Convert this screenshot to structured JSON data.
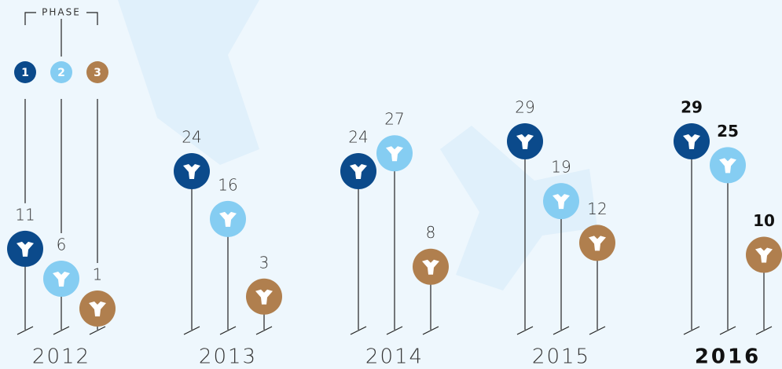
{
  "chart_data": {
    "type": "pin",
    "legend_title": "PHASE",
    "categories": [
      "2012",
      "2013",
      "2014",
      "2015",
      "2016"
    ],
    "series": [
      {
        "name": "1",
        "color": "#0b4a8b",
        "values": [
          11,
          24,
          24,
          29,
          29
        ]
      },
      {
        "name": "2",
        "color": "#85cdf2",
        "values": [
          6,
          16,
          27,
          19,
          25
        ]
      },
      {
        "name": "3",
        "color": "#b07f4e",
        "values": [
          1,
          3,
          8,
          12,
          10
        ]
      }
    ]
  }
}
